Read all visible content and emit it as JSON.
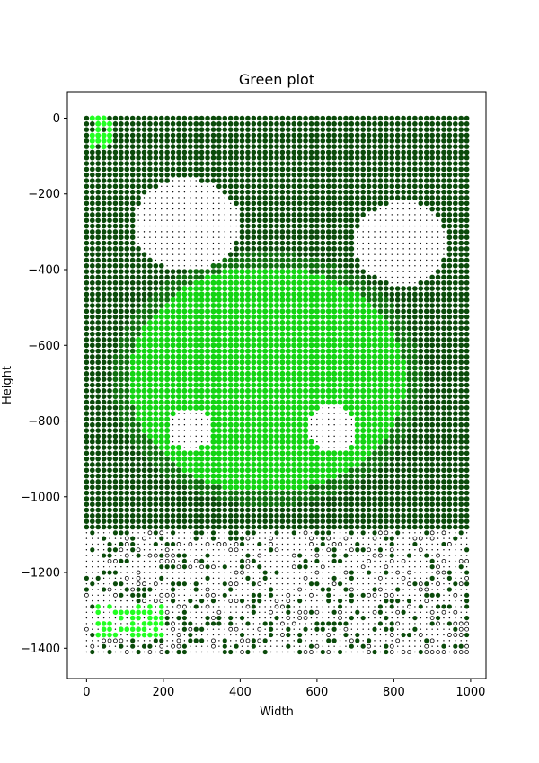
{
  "chart_data": {
    "type": "scatter",
    "title": "Green plot",
    "xlabel": "Width",
    "ylabel": "Height",
    "xlim": [
      -50,
      1040
    ],
    "ylim": [
      -1480,
      70
    ],
    "xticks": [
      0,
      200,
      400,
      600,
      800,
      1000
    ],
    "yticks": [
      0,
      -200,
      -400,
      -600,
      -800,
      -1000,
      -1200,
      -1400
    ],
    "grid": false,
    "legend": "none",
    "marker_grid": {
      "x_start": 0,
      "x_end": 990,
      "x_step": 15,
      "y_start": 0,
      "y_end": -1410,
      "y_step": -15,
      "description": "Each grid point is drawn as a dot; marker size encodes intensity and color encodes green level."
    },
    "colors": {
      "dark_green": "#0a4a0a",
      "medium_green": "#0f6e0f",
      "bright_green": "#12d412",
      "lime": "#22ff22",
      "black": "#000000"
    },
    "regions": {
      "white_blob_left": {
        "cx": 260,
        "cy": -280,
        "rx": 140,
        "ry": 120
      },
      "white_blob_right": {
        "cx": 820,
        "cy": -330,
        "rx": 120,
        "ry": 110
      },
      "white_blob_center_left": {
        "cx": 270,
        "cy": -820,
        "rx": 60,
        "ry": 55
      },
      "white_blob_center_right": {
        "cx": 640,
        "cy": -820,
        "rx": 65,
        "ry": 60
      },
      "bright_center": {
        "cx": 470,
        "cy": -690,
        "rx": 360,
        "ry": 300
      },
      "lower_white_area_y": -1080
    }
  }
}
